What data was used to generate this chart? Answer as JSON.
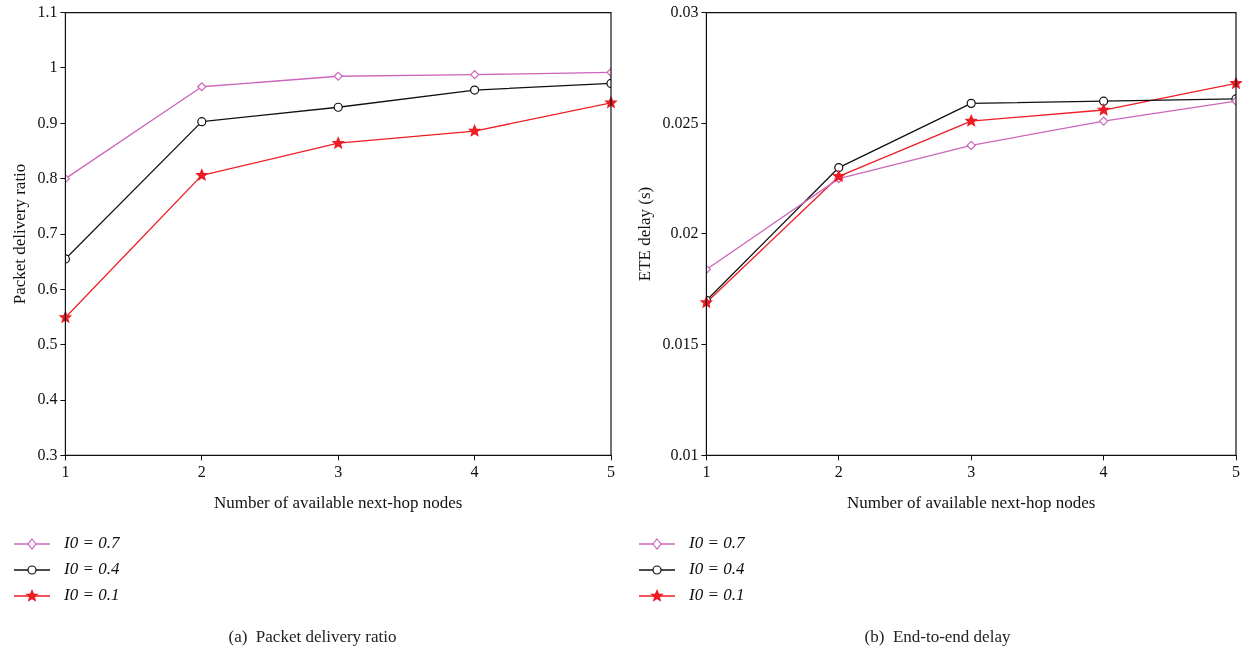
{
  "chart_data": [
    {
      "type": "line",
      "xlabel": "Number of available next-hop nodes",
      "ylabel": "Packet delivery ratio",
      "x": [
        1,
        2,
        3,
        4,
        5
      ],
      "xlim": [
        1,
        5
      ],
      "xticks": [
        1,
        2,
        3,
        4,
        5
      ],
      "ylim": [
        0.3,
        1.1
      ],
      "yticks": [
        0.3,
        0.4,
        0.5,
        0.6,
        0.7,
        0.8,
        0.9,
        1,
        1.1
      ],
      "grid": false,
      "legend": "bottom left",
      "line_style": "solid",
      "annotations": [
        "(a)  Packet delivery ratio"
      ],
      "series": [
        {
          "name": "I0 = 0.7",
          "color": "#cc66bb",
          "marker": "diamond",
          "values": [
            0.8,
            0.966,
            0.985,
            0.988,
            0.992
          ]
        },
        {
          "name": "I0 = 0.4",
          "color": "#111111",
          "marker": "circle",
          "values": [
            0.655,
            0.903,
            0.929,
            0.96,
            0.972
          ]
        },
        {
          "name": "I0 = 0.1",
          "color": "#ee1c24",
          "marker": "star",
          "values": [
            0.549,
            0.806,
            0.864,
            0.886,
            0.937
          ]
        }
      ]
    },
    {
      "type": "line",
      "xlabel": "Number of available next-hop nodes",
      "ylabel": "ETE delay (s)",
      "x": [
        1,
        2,
        3,
        4,
        5
      ],
      "xlim": [
        1,
        5
      ],
      "xticks": [
        1,
        2,
        3,
        4,
        5
      ],
      "ylim": [
        0.01,
        0.03
      ],
      "yticks": [
        0.01,
        0.015,
        0.02,
        0.025,
        0.03
      ],
      "grid": false,
      "legend": "bottom left",
      "line_style": "solid",
      "annotations": [
        "(b)  End-to-end delay"
      ],
      "series": [
        {
          "name": "I0 = 0.7",
          "color": "#cc66bb",
          "marker": "diamond",
          "values": [
            0.0184,
            0.0225,
            0.024,
            0.0251,
            0.026
          ]
        },
        {
          "name": "I0 = 0.4",
          "color": "#111111",
          "marker": "circle",
          "values": [
            0.017,
            0.023,
            0.0259,
            0.026,
            0.0261
          ]
        },
        {
          "name": "I0 = 0.1",
          "color": "#ee1c24",
          "marker": "star",
          "values": [
            0.0169,
            0.0226,
            0.0251,
            0.0256,
            0.0268
          ]
        }
      ]
    }
  ]
}
